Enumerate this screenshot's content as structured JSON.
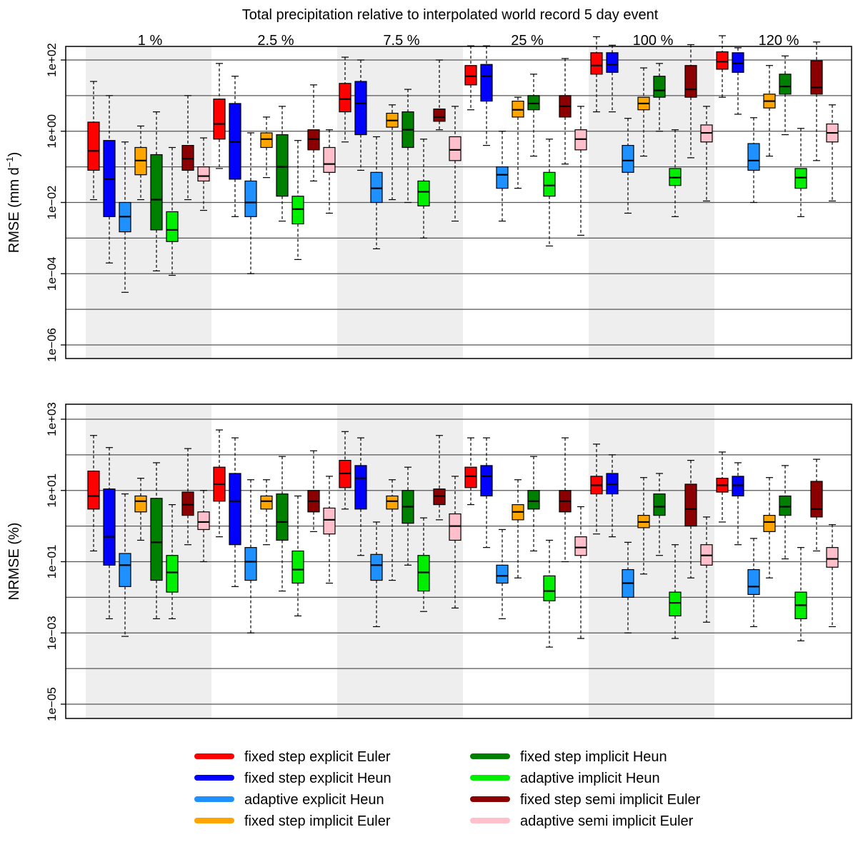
{
  "chart_data": [
    {
      "type": "boxplot",
      "title": "Total precipitation relative to interpolated world record 5 day event",
      "ylabel": "RMSE (mm d",
      "ylabel_sup": "−1",
      "ylabel_close": ")",
      "yscale": "log10",
      "ylim": [
        1e-06,
        1000
      ],
      "gridlines": [
        1e-06,
        1e-05,
        0.0001,
        0.001,
        0.01,
        0.1,
        1,
        10,
        100,
        1000
      ],
      "ticks": [
        {
          "value": 1e-06,
          "label": "1e−06"
        },
        {
          "value": 0.0001,
          "label": "1e−04"
        },
        {
          "value": 0.01,
          "label": "1e−02"
        },
        {
          "value": 1,
          "label": "1e+00"
        },
        {
          "value": 100,
          "label": "1e+02"
        }
      ],
      "groups": [
        "1 %",
        "2.5 %",
        "7.5 %",
        "25 %",
        "100 %",
        "120 %"
      ],
      "series": [
        {
          "name": "fixed step explicit Euler",
          "color": "#ff0000",
          "boxes": [
            {
              "min": 0.012,
              "q1": 0.08,
              "median": 0.28,
              "q3": 1.8,
              "max": 25
            },
            {
              "min": 0.09,
              "q1": 0.6,
              "median": 1.6,
              "q3": 8,
              "max": 80
            },
            {
              "min": 0.5,
              "q1": 3.5,
              "median": 8,
              "q3": 22,
              "max": 120
            },
            {
              "min": 4,
              "q1": 20,
              "median": 35,
              "q3": 70,
              "max": 250
            },
            {
              "min": 3.5,
              "q1": 40,
              "median": 70,
              "q3": 160,
              "max": 450
            },
            {
              "min": 9,
              "q1": 55,
              "median": 90,
              "q3": 170,
              "max": 480
            }
          ]
        },
        {
          "name": "fixed step explicit Heun",
          "color": "#0000ff",
          "boxes": [
            {
              "min": 0.0002,
              "q1": 0.004,
              "median": 0.045,
              "q3": 0.55,
              "max": 10
            },
            {
              "min": 0.004,
              "q1": 0.045,
              "median": 0.5,
              "q3": 6,
              "max": 35
            },
            {
              "min": 0.08,
              "q1": 0.8,
              "median": 6,
              "q3": 25,
              "max": 100
            },
            {
              "min": 0.4,
              "q1": 7,
              "median": 35,
              "q3": 75,
              "max": 250
            },
            {
              "min": 3.5,
              "q1": 45,
              "median": 75,
              "q3": 160,
              "max": 260
            },
            {
              "min": 3,
              "q1": 45,
              "median": 80,
              "q3": 160,
              "max": 220
            }
          ]
        },
        {
          "name": "adaptive explicit Heun",
          "color": "#1e90ff",
          "boxes": [
            {
              "min": 3e-05,
              "q1": 0.0015,
              "median": 0.004,
              "q3": 0.01,
              "max": 0.5
            },
            {
              "min": 0.0001,
              "q1": 0.004,
              "median": 0.01,
              "q3": 0.04,
              "max": 0.9
            },
            {
              "min": 0.0005,
              "q1": 0.01,
              "median": 0.025,
              "q3": 0.07,
              "max": 0.7
            },
            {
              "min": 0.003,
              "q1": 0.025,
              "median": 0.06,
              "q3": 0.1,
              "max": 1
            },
            {
              "min": 0.005,
              "q1": 0.07,
              "median": 0.15,
              "q3": 0.4,
              "max": 2.3
            },
            {
              "min": 0.01,
              "q1": 0.08,
              "median": 0.15,
              "q3": 0.45,
              "max": 2.4
            }
          ]
        },
        {
          "name": "fixed step implicit Euler",
          "color": "#ffa500",
          "boxes": [
            {
              "min": 0.012,
              "q1": 0.06,
              "median": 0.15,
              "q3": 0.35,
              "max": 1.4
            },
            {
              "min": 0.05,
              "q1": 0.35,
              "median": 0.6,
              "q3": 0.9,
              "max": 2.5
            },
            {
              "min": 0.012,
              "q1": 1.3,
              "median": 2,
              "q3": 3.2,
              "max": 5.5
            },
            {
              "min": 0.025,
              "q1": 2.5,
              "median": 4,
              "q3": 7,
              "max": 9
            },
            {
              "min": 0.2,
              "q1": 4,
              "median": 6,
              "q3": 9,
              "max": 60
            },
            {
              "min": 0.2,
              "q1": 4.5,
              "median": 7,
              "q3": 11,
              "max": 70
            }
          ]
        },
        {
          "name": "fixed step implicit Heun",
          "color": "#008000",
          "boxes": [
            {
              "min": 0.00012,
              "q1": 0.0017,
              "median": 0.012,
              "q3": 0.22,
              "max": 3.5
            },
            {
              "min": 0.003,
              "q1": 0.015,
              "median": 0.1,
              "q3": 0.8,
              "max": 5
            },
            {
              "min": 0.01,
              "q1": 0.35,
              "median": 1.1,
              "q3": 3.5,
              "max": 15
            },
            {
              "min": 0.2,
              "q1": 4,
              "median": 6,
              "q3": 10,
              "max": 40
            },
            {
              "min": 1,
              "q1": 9,
              "median": 14,
              "q3": 35,
              "max": 80
            },
            {
              "min": 0.8,
              "q1": 11,
              "median": 18,
              "q3": 40,
              "max": 130
            }
          ]
        },
        {
          "name": "adaptive implicit Heun",
          "color": "#00ee00",
          "boxes": [
            {
              "min": 9e-05,
              "q1": 0.0008,
              "median": 0.0017,
              "q3": 0.0055,
              "max": 0.35
            },
            {
              "min": 0.00025,
              "q1": 0.0025,
              "median": 0.0065,
              "q3": 0.015,
              "max": 0.55
            },
            {
              "min": 0.001,
              "q1": 0.008,
              "median": 0.02,
              "q3": 0.04,
              "max": 0.6
            },
            {
              "min": 0.0006,
              "q1": 0.015,
              "median": 0.03,
              "q3": 0.07,
              "max": 0.6
            },
            {
              "min": 0.004,
              "q1": 0.03,
              "median": 0.05,
              "q3": 0.09,
              "max": 1.1
            },
            {
              "min": 0.004,
              "q1": 0.025,
              "median": 0.05,
              "q3": 0.09,
              "max": 1.2
            }
          ]
        },
        {
          "name": "fixed step semi implicit Euler",
          "color": "#8b0000",
          "boxes": [
            {
              "min": 0.012,
              "q1": 0.08,
              "median": 0.17,
              "q3": 0.4,
              "max": 10
            },
            {
              "min": 0.04,
              "q1": 0.3,
              "median": 0.6,
              "q3": 1.1,
              "max": 20
            },
            {
              "min": 1.1,
              "q1": 1.9,
              "median": 2.5,
              "q3": 4.2,
              "max": 100
            },
            {
              "min": 0.12,
              "q1": 2.5,
              "median": 5,
              "q3": 10,
              "max": 110
            },
            {
              "min": 0.18,
              "q1": 9,
              "median": 15,
              "q3": 70,
              "max": 270
            },
            {
              "min": 0.15,
              "q1": 11,
              "median": 17,
              "q3": 95,
              "max": 320
            }
          ]
        },
        {
          "name": "adaptive semi implicit Euler",
          "color": "#ffc0cb",
          "boxes": [
            {
              "min": 0.006,
              "q1": 0.04,
              "median": 0.055,
              "q3": 0.1,
              "max": 0.65
            },
            {
              "min": 0.005,
              "q1": 0.07,
              "median": 0.12,
              "q3": 0.35,
              "max": 1.1
            },
            {
              "min": 0.003,
              "q1": 0.15,
              "median": 0.3,
              "q3": 0.7,
              "max": 5
            },
            {
              "min": 0.0012,
              "q1": 0.3,
              "median": 0.6,
              "q3": 1.1,
              "max": 5
            },
            {
              "min": 0.011,
              "q1": 0.5,
              "median": 0.9,
              "q3": 1.5,
              "max": 5
            },
            {
              "min": 0.011,
              "q1": 0.5,
              "median": 0.9,
              "q3": 1.6,
              "max": 5.5
            }
          ]
        }
      ]
    },
    {
      "type": "boxplot",
      "ylabel": "NRMSE (%)",
      "yscale": "log10",
      "ylim": [
        1e-05,
        1000
      ],
      "gridlines": [
        1e-05,
        0.0001,
        0.001,
        0.01,
        0.1,
        1,
        10,
        100,
        1000
      ],
      "ticks": [
        {
          "value": 1e-05,
          "label": "1e−05"
        },
        {
          "value": 0.001,
          "label": "1e−03"
        },
        {
          "value": 0.1,
          "label": "1e−01"
        },
        {
          "value": 10,
          "label": "1e+01"
        },
        {
          "value": 1000,
          "label": "1e+03"
        }
      ],
      "groups": [
        "1 %",
        "2.5 %",
        "7.5 %",
        "25 %",
        "100 %",
        "120 %"
      ],
      "series": [
        {
          "name": "fixed step explicit Euler",
          "color": "#ff0000",
          "boxes": [
            {
              "min": 0.2,
              "q1": 3,
              "median": 7,
              "q3": 35,
              "max": 350
            },
            {
              "min": 0.5,
              "q1": 5,
              "median": 15,
              "q3": 45,
              "max": 500
            },
            {
              "min": 3,
              "q1": 12,
              "median": 30,
              "q3": 70,
              "max": 450
            },
            {
              "min": 4,
              "q1": 12,
              "median": 25,
              "q3": 45,
              "max": 300
            },
            {
              "min": 0.6,
              "q1": 8,
              "median": 14,
              "q3": 25,
              "max": 200
            },
            {
              "min": 1.3,
              "q1": 9,
              "median": 14,
              "q3": 22,
              "max": 120
            }
          ]
        },
        {
          "name": "fixed step explicit Heun",
          "color": "#0000ff",
          "boxes": [
            {
              "min": 0.0025,
              "q1": 0.08,
              "median": 0.5,
              "q3": 11,
              "max": 160
            },
            {
              "min": 0.02,
              "q1": 0.3,
              "median": 5,
              "q3": 30,
              "max": 300
            },
            {
              "min": 0.15,
              "q1": 3,
              "median": 22,
              "q3": 50,
              "max": 300
            },
            {
              "min": 0.25,
              "q1": 7,
              "median": 25,
              "q3": 50,
              "max": 300
            },
            {
              "min": 0.5,
              "q1": 8,
              "median": 15,
              "q3": 30,
              "max": 100
            },
            {
              "min": 0.3,
              "q1": 7,
              "median": 14,
              "q3": 25,
              "max": 60
            }
          ]
        },
        {
          "name": "adaptive explicit Heun",
          "color": "#1e90ff",
          "boxes": [
            {
              "min": 0.0008,
              "q1": 0.02,
              "median": 0.08,
              "q3": 0.17,
              "max": 8
            },
            {
              "min": 0.001,
              "q1": 0.03,
              "median": 0.1,
              "q3": 0.25,
              "max": 20
            },
            {
              "min": 0.0015,
              "q1": 0.03,
              "median": 0.08,
              "q3": 0.16,
              "max": 1.3
            },
            {
              "min": 0.0025,
              "q1": 0.025,
              "median": 0.04,
              "q3": 0.08,
              "max": 0.8
            },
            {
              "min": 0.001,
              "q1": 0.01,
              "median": 0.025,
              "q3": 0.06,
              "max": 0.35
            },
            {
              "min": 0.0015,
              "q1": 0.012,
              "median": 0.02,
              "q3": 0.06,
              "max": 0.45
            }
          ]
        },
        {
          "name": "fixed step implicit Euler",
          "color": "#ffa500",
          "boxes": [
            {
              "min": 0.4,
              "q1": 2.5,
              "median": 5,
              "q3": 7,
              "max": 22
            },
            {
              "min": 0.3,
              "q1": 3,
              "median": 5,
              "q3": 7,
              "max": 20
            },
            {
              "min": 0.03,
              "q1": 3,
              "median": 5,
              "q3": 7,
              "max": 20
            },
            {
              "min": 0.035,
              "q1": 1.5,
              "median": 2.5,
              "q3": 4,
              "max": 20
            },
            {
              "min": 0.045,
              "q1": 0.9,
              "median": 1.3,
              "q3": 2,
              "max": 23
            },
            {
              "min": 0.035,
              "q1": 0.7,
              "median": 1.3,
              "q3": 2,
              "max": 23
            }
          ]
        },
        {
          "name": "fixed step implicit Heun",
          "color": "#008000",
          "boxes": [
            {
              "min": 0.0025,
              "q1": 0.03,
              "median": 0.35,
              "q3": 6,
              "max": 60
            },
            {
              "min": 0.015,
              "q1": 0.4,
              "median": 1.3,
              "q3": 8,
              "max": 90
            },
            {
              "min": 0.08,
              "q1": 1.2,
              "median": 3.5,
              "q3": 10,
              "max": 45
            },
            {
              "min": 0.2,
              "q1": 3,
              "median": 5,
              "q3": 10,
              "max": 90
            },
            {
              "min": 0.15,
              "q1": 2,
              "median": 3.5,
              "q3": 8,
              "max": 30
            },
            {
              "min": 0.12,
              "q1": 2,
              "median": 3.5,
              "q3": 7,
              "max": 50
            }
          ]
        },
        {
          "name": "adaptive implicit Heun",
          "color": "#00ee00",
          "boxes": [
            {
              "min": 0.0025,
              "q1": 0.014,
              "median": 0.05,
              "q3": 0.15,
              "max": 4
            },
            {
              "min": 0.003,
              "q1": 0.025,
              "median": 0.06,
              "q3": 0.2,
              "max": 7
            },
            {
              "min": 0.004,
              "q1": 0.015,
              "median": 0.05,
              "q3": 0.15,
              "max": 1.7
            },
            {
              "min": 0.0004,
              "q1": 0.008,
              "median": 0.015,
              "q3": 0.04,
              "max": 0.4
            },
            {
              "min": 0.0007,
              "q1": 0.003,
              "median": 0.007,
              "q3": 0.014,
              "max": 0.3
            },
            {
              "min": 0.0006,
              "q1": 0.0025,
              "median": 0.006,
              "q3": 0.014,
              "max": 0.25
            }
          ]
        },
        {
          "name": "fixed step semi implicit Euler",
          "color": "#8b0000",
          "boxes": [
            {
              "min": 0.3,
              "q1": 2,
              "median": 4,
              "q3": 9,
              "max": 150
            },
            {
              "min": 0.7,
              "q1": 2.5,
              "median": 5,
              "q3": 10,
              "max": 130
            },
            {
              "min": 1.5,
              "q1": 4,
              "median": 7,
              "q3": 11,
              "max": 350
            },
            {
              "min": 0.1,
              "q1": 2.5,
              "median": 5,
              "q3": 10,
              "max": 300
            },
            {
              "min": 0.035,
              "q1": 1,
              "median": 3,
              "q3": 15,
              "max": 70
            },
            {
              "min": 0.2,
              "q1": 1.8,
              "median": 3,
              "q3": 18,
              "max": 75
            }
          ]
        },
        {
          "name": "adaptive semi implicit Euler",
          "color": "#ffc0cb",
          "boxes": [
            {
              "min": 0.1,
              "q1": 0.8,
              "median": 1.3,
              "q3": 2.5,
              "max": 10
            },
            {
              "min": 0.025,
              "q1": 0.6,
              "median": 1.5,
              "q3": 3.2,
              "max": 25
            },
            {
              "min": 0.005,
              "q1": 0.4,
              "median": 1,
              "q3": 2.2,
              "max": 25
            },
            {
              "min": 0.0007,
              "q1": 0.15,
              "median": 0.25,
              "q3": 0.5,
              "max": 3.5
            },
            {
              "min": 0.002,
              "q1": 0.08,
              "median": 0.15,
              "q3": 0.3,
              "max": 1.8
            },
            {
              "min": 0.0015,
              "q1": 0.07,
              "median": 0.12,
              "q3": 0.25,
              "max": 1.1
            }
          ]
        }
      ]
    }
  ],
  "legend": [
    {
      "name": "fixed step explicit Euler",
      "color": "#ff0000"
    },
    {
      "name": "fixed step explicit Heun",
      "color": "#0000ff"
    },
    {
      "name": "adaptive explicit Heun",
      "color": "#1e90ff"
    },
    {
      "name": "fixed step implicit Euler",
      "color": "#ffa500"
    },
    {
      "name": "fixed step implicit Heun",
      "color": "#008000"
    },
    {
      "name": "adaptive implicit Heun",
      "color": "#00ee00"
    },
    {
      "name": "fixed step semi implicit Euler",
      "color": "#8b0000"
    },
    {
      "name": "adaptive semi implicit Euler",
      "color": "#ffc0cb"
    }
  ],
  "colors": {
    "shade": "#eeeeee",
    "grid": "#555555"
  }
}
